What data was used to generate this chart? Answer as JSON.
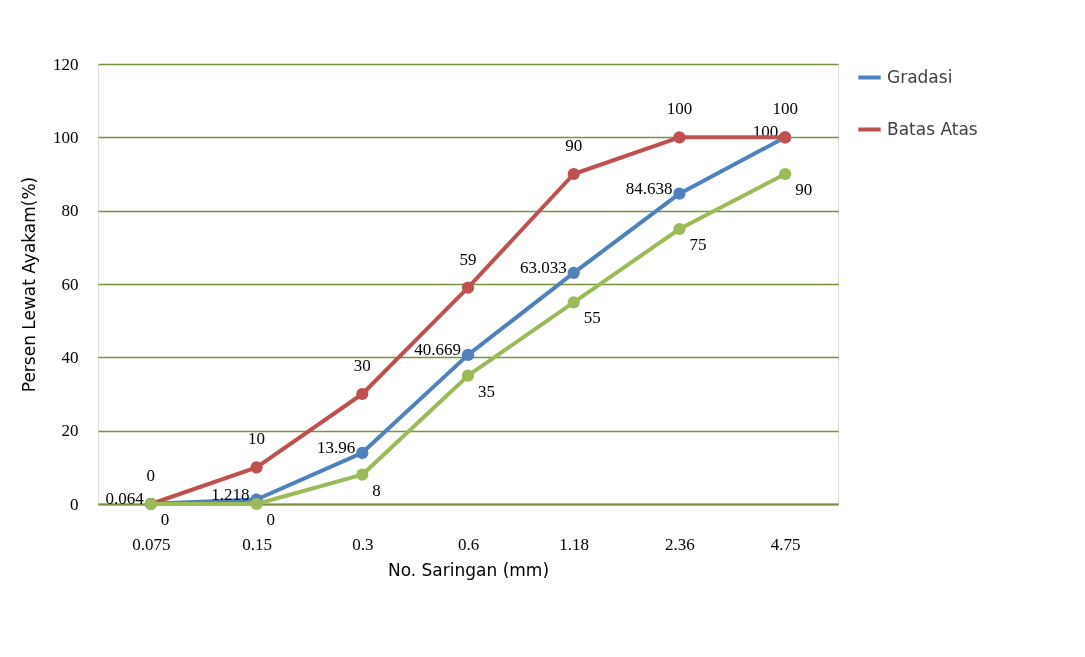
{
  "chart_data": {
    "type": "line",
    "xlabel": "No. Saringan (mm)",
    "ylabel": "Persen Lewat Ayakam(%)",
    "categories": [
      "0.075",
      "0.15",
      "0.3",
      "0.6",
      "1.18",
      "2.36",
      "4.75"
    ],
    "series": [
      {
        "name": "Gradasi",
        "color": "#4f81bd",
        "values": [
          0.064,
          1.218,
          13.96,
          40.669,
          63.033,
          84.638,
          100
        ]
      },
      {
        "name": "Batas Atas",
        "color": "#c0504d",
        "values": [
          0,
          10,
          30,
          59,
          90,
          100,
          100
        ]
      },
      {
        "color": "#9bbb59",
        "values": [
          0,
          0,
          8,
          35,
          55,
          75,
          90
        ]
      }
    ],
    "ylim": [
      0,
      120
    ],
    "yticks": [
      0,
      20,
      40,
      60,
      80,
      100,
      120
    ],
    "grid": "y",
    "legend": "right",
    "marker": "circle",
    "line_style": "solid",
    "data_labels": true
  }
}
